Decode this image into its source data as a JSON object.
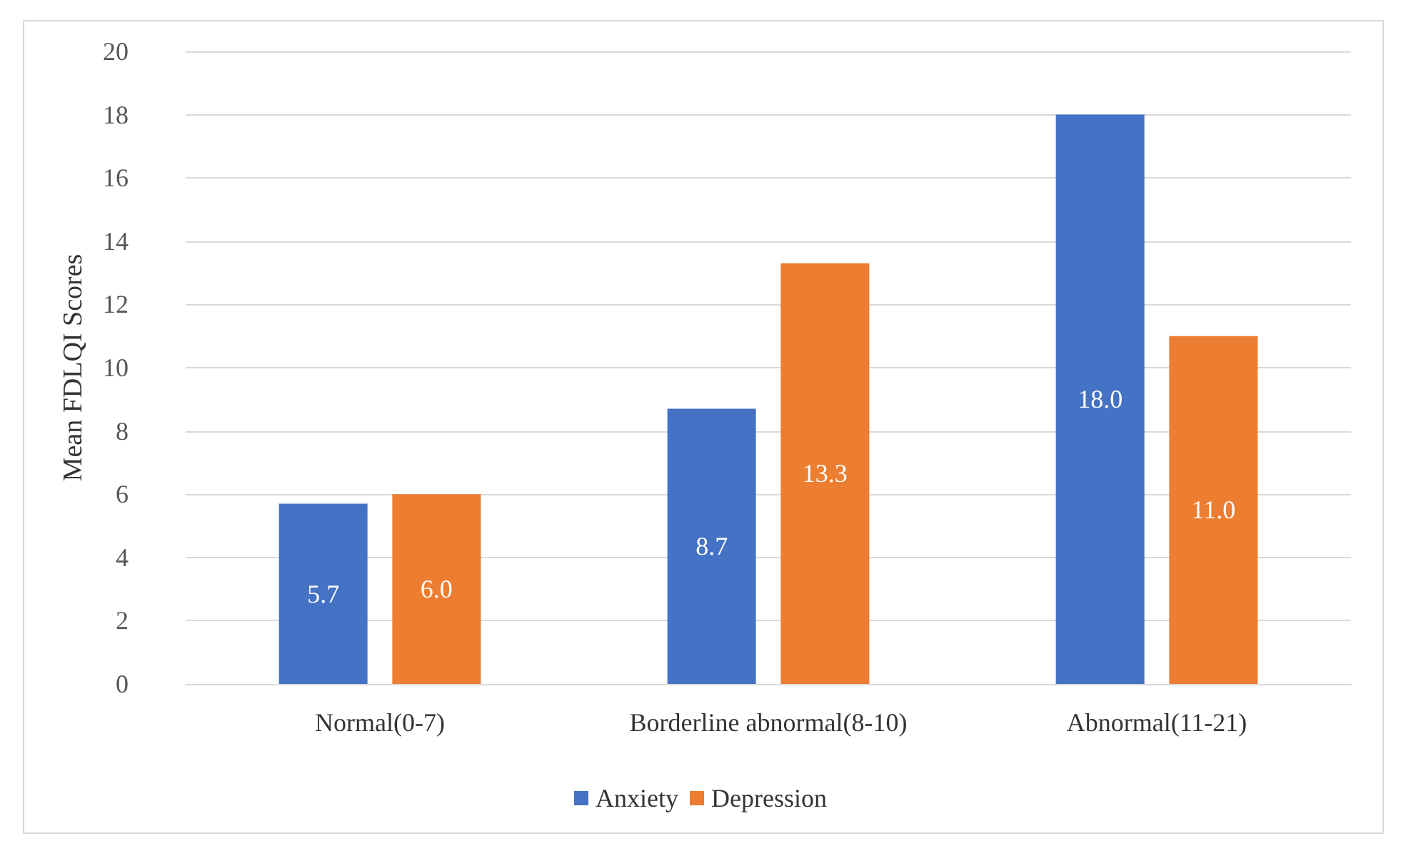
{
  "chart_data": {
    "type": "bar",
    "ylabel": "Mean FDLQI Scores",
    "categories": [
      "Normal(0-7)",
      "Borderline abnormal(8-10)",
      "Abnormal(11-21)"
    ],
    "series": [
      {
        "name": "Anxiety",
        "color": "#4472c4",
        "values": [
          5.7,
          8.7,
          18.0
        ],
        "value_labels": [
          "5.7",
          "8.7",
          "18.0"
        ]
      },
      {
        "name": "Depression",
        "color": "#ed7d31",
        "values": [
          6.0,
          13.3,
          11.0
        ],
        "value_labels": [
          "6.0",
          "13.3",
          "11.0"
        ]
      }
    ],
    "ylim": [
      0,
      20
    ],
    "yticks": [
      0,
      2,
      4,
      6,
      8,
      10,
      12,
      14,
      16,
      18,
      20
    ],
    "grid": "y",
    "legend": "bottom"
  }
}
